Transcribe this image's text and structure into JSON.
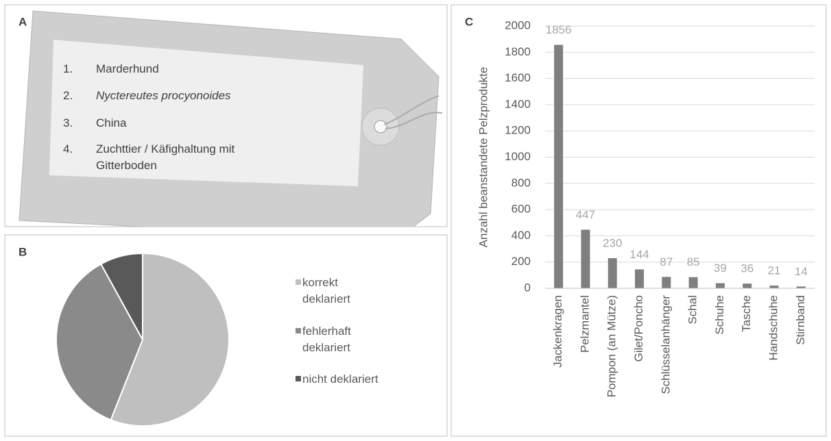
{
  "tag": {
    "panel": "A",
    "items": [
      {
        "number": "1.",
        "text": "Marderhund"
      },
      {
        "number": "2.",
        "text": "Nyctereutes procyonoides"
      },
      {
        "number": "3.",
        "text": "China"
      },
      {
        "number": "4.",
        "text": "Zuchttier / Käfighaltung mit Gitterboden"
      }
    ]
  },
  "chart_data": [
    {
      "type": "pie",
      "panel": "B",
      "categories": [
        "korrekt deklariert",
        "fehlerhaft deklariert",
        "nicht deklariert"
      ],
      "values": [
        56,
        36,
        8
      ],
      "colors": [
        "#bfbfbf",
        "#8a8a8a",
        "#595959"
      ]
    },
    {
      "type": "bar",
      "panel": "C",
      "ylabel": "Anzahl beanstandete Pelzprodukte",
      "categories": [
        "Jackenkragen",
        "Pelzmantel",
        "Pompon (an Mütze)",
        "Gilet/Poncho",
        "Schlüsselanhänger",
        "Schal",
        "Schuhe",
        "Tasche",
        "Handschuhe",
        "Stirnband"
      ],
      "values": [
        1856,
        447,
        230,
        144,
        87,
        85,
        39,
        36,
        21,
        14
      ],
      "color": "#7f7f7f",
      "label_color": "#a6a6a6",
      "ylim": [
        0,
        2000
      ],
      "yticks": [
        0,
        200,
        400,
        600,
        800,
        1000,
        1200,
        1400,
        1600,
        1800,
        2000
      ],
      "grid": true
    }
  ]
}
